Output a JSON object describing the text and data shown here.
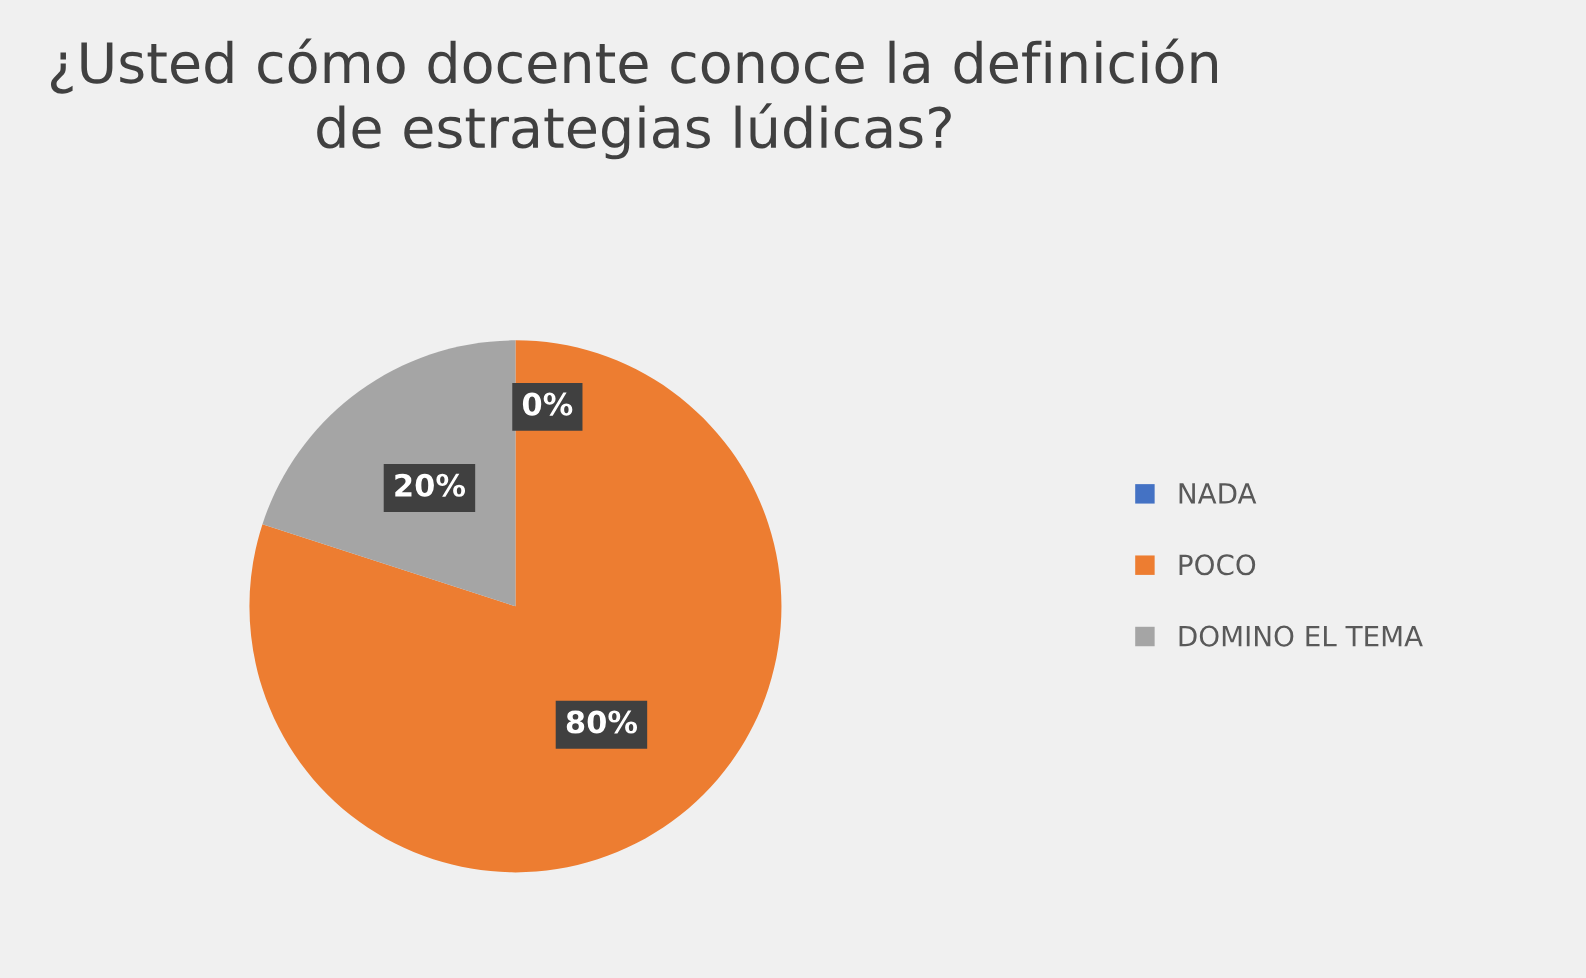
{
  "chart_data": {
    "type": "pie",
    "title": "¿Usted cómo docente conoce la definición\nde estrategias lúdicas?",
    "categories": [
      "NADA",
      "POCO",
      "DOMINO EL TEMA"
    ],
    "values": [
      0,
      80,
      20
    ],
    "colors": [
      "#4472c4",
      "#ed7d31",
      "#a5a5a5"
    ],
    "value_labels": [
      "0%",
      "80%",
      "20%"
    ],
    "legend": "right"
  }
}
